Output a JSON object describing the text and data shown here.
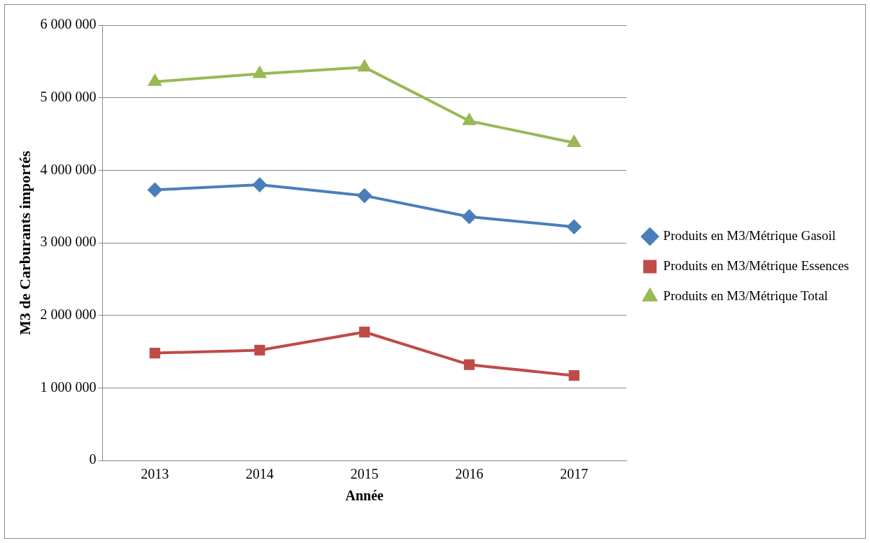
{
  "chart_data": {
    "type": "line",
    "xlabel": "Année",
    "ylabel": "M3 de Carburants importés",
    "categories": [
      "2013",
      "2014",
      "2015",
      "2016",
      "2017"
    ],
    "series": [
      {
        "name": "Produits en M3/Métrique Gasoil",
        "color": "#4a7ebb",
        "marker": "diamond",
        "values": [
          3730000,
          3800000,
          3650000,
          3360000,
          3220000
        ]
      },
      {
        "name": "Produits en M3/Métrique Essences",
        "color": "#be4b48",
        "marker": "square",
        "values": [
          1480000,
          1520000,
          1770000,
          1320000,
          1170000
        ]
      },
      {
        "name": "Produits en M3/Métrique Total",
        "color": "#98b954",
        "marker": "triangle",
        "values": [
          5220000,
          5330000,
          5420000,
          4680000,
          4380000
        ]
      }
    ],
    "ylim": [
      0,
      6000000
    ],
    "yticks": [
      0,
      {
        "value": 1000000,
        "label": "1 000 000"
      },
      {
        "value": 2000000,
        "label": "2 000 000"
      },
      {
        "value": 3000000,
        "label": "3 000 000"
      },
      {
        "value": 4000000,
        "label": "4 000 000"
      },
      {
        "value": 5000000,
        "label": "5 000 000"
      },
      {
        "value": 6000000,
        "label": "6 000 000"
      }
    ],
    "grid": "y",
    "legend": "right",
    "line_style": "solid"
  }
}
